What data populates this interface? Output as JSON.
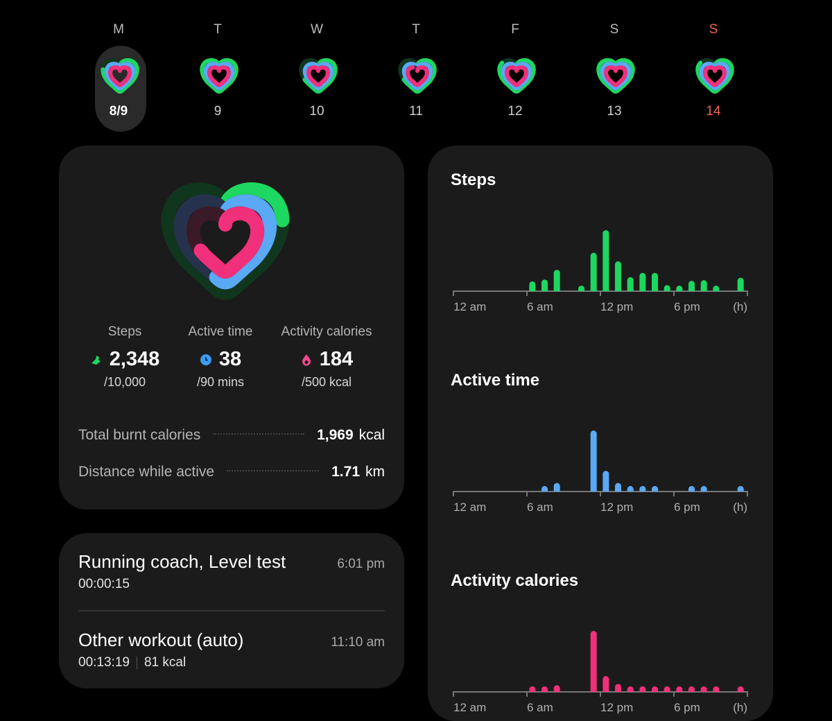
{
  "colors": {
    "steps": "#1ed760",
    "active": "#5aa9f5",
    "calories": "#f0307a",
    "sunday": "#f0644f"
  },
  "week": [
    {
      "label": "M",
      "date": "8/9",
      "selected": true,
      "progress": {
        "steps": 0.23,
        "active": 0.42,
        "calories": 0.37
      }
    },
    {
      "label": "T",
      "date": "9",
      "progress": {
        "steps": 0.3,
        "active": 0.4,
        "calories": 0.3
      }
    },
    {
      "label": "W",
      "date": "10",
      "progress": {
        "steps": 0.2,
        "active": 0.3,
        "calories": 0.2
      }
    },
    {
      "label": "T",
      "date": "11",
      "progress": {
        "steps": 0.2,
        "active": 0.25,
        "calories": 0.15
      }
    },
    {
      "label": "F",
      "date": "12",
      "progress": {
        "steps": 0.25,
        "active": 0.45,
        "calories": 0.35
      }
    },
    {
      "label": "S",
      "date": "13",
      "progress": {
        "steps": 0.3,
        "active": 0.4,
        "calories": 0.2
      }
    },
    {
      "label": "S",
      "date": "14",
      "sunday": true,
      "progress": {
        "steps": 0.25,
        "active": 0.3,
        "calories": 0.2
      }
    }
  ],
  "summary": {
    "rings": {
      "steps": 0.2348,
      "active": 0.42,
      "calories": 0.37
    },
    "stats": [
      {
        "label": "Steps",
        "value": "2,348",
        "goal": "/10,000",
        "icon": "shoe-icon"
      },
      {
        "label": "Active time",
        "value": "38",
        "goal": "/90 mins",
        "icon": "clock-icon"
      },
      {
        "label": "Activity calories",
        "value": "184",
        "goal": "/500 kcal",
        "icon": "flame-icon"
      }
    ],
    "total_burnt": {
      "label": "Total burnt calories",
      "value": "1,969",
      "unit": "kcal"
    },
    "distance": {
      "label": "Distance while active",
      "value": "1.71",
      "unit": "km"
    }
  },
  "workouts": [
    {
      "title": "Running coach, Level test",
      "duration": "00:00:15",
      "time": "6:01 pm"
    },
    {
      "title": "Other workout (auto)",
      "duration": "00:13:19",
      "calories": "81 kcal",
      "time": "11:10 am"
    }
  ],
  "chart_data": [
    {
      "type": "bar",
      "title": "Steps",
      "color": "#1ed760",
      "xlim": [
        0,
        24
      ],
      "xticks": [
        "12 am",
        "6 am",
        "12 pm",
        "6 pm"
      ],
      "xunit": "(h)",
      "x": [
        6,
        7,
        8,
        10,
        11,
        12,
        13,
        14,
        15,
        16,
        17,
        18,
        19,
        20,
        21,
        23
      ],
      "values": [
        16,
        19,
        35,
        5,
        63,
        100,
        49,
        23,
        30,
        30,
        10,
        5,
        17,
        18,
        5,
        22
      ]
    },
    {
      "type": "bar",
      "title": "Active time",
      "color": "#5aa9f5",
      "xlim": [
        0,
        24
      ],
      "xticks": [
        "12 am",
        "6 am",
        "12 pm",
        "6 pm"
      ],
      "xunit": "(h)",
      "x": [
        7,
        8,
        11,
        12,
        13,
        14,
        15,
        16,
        19,
        20,
        23
      ],
      "values": [
        7,
        14,
        100,
        34,
        14,
        7,
        7,
        7,
        7,
        7,
        7
      ]
    },
    {
      "type": "bar",
      "title": "Activity calories",
      "color": "#f0307a",
      "xlim": [
        0,
        24
      ],
      "xticks": [
        "12 am",
        "6 am",
        "12 pm",
        "6 pm"
      ],
      "xunit": "(h)",
      "x": [
        6,
        7,
        8,
        11,
        12,
        13,
        14,
        15,
        16,
        17,
        18,
        19,
        20,
        21,
        23
      ],
      "values": [
        5,
        5,
        11,
        100,
        26,
        13,
        7,
        7,
        7,
        7,
        7,
        7,
        7,
        7,
        9
      ]
    }
  ]
}
